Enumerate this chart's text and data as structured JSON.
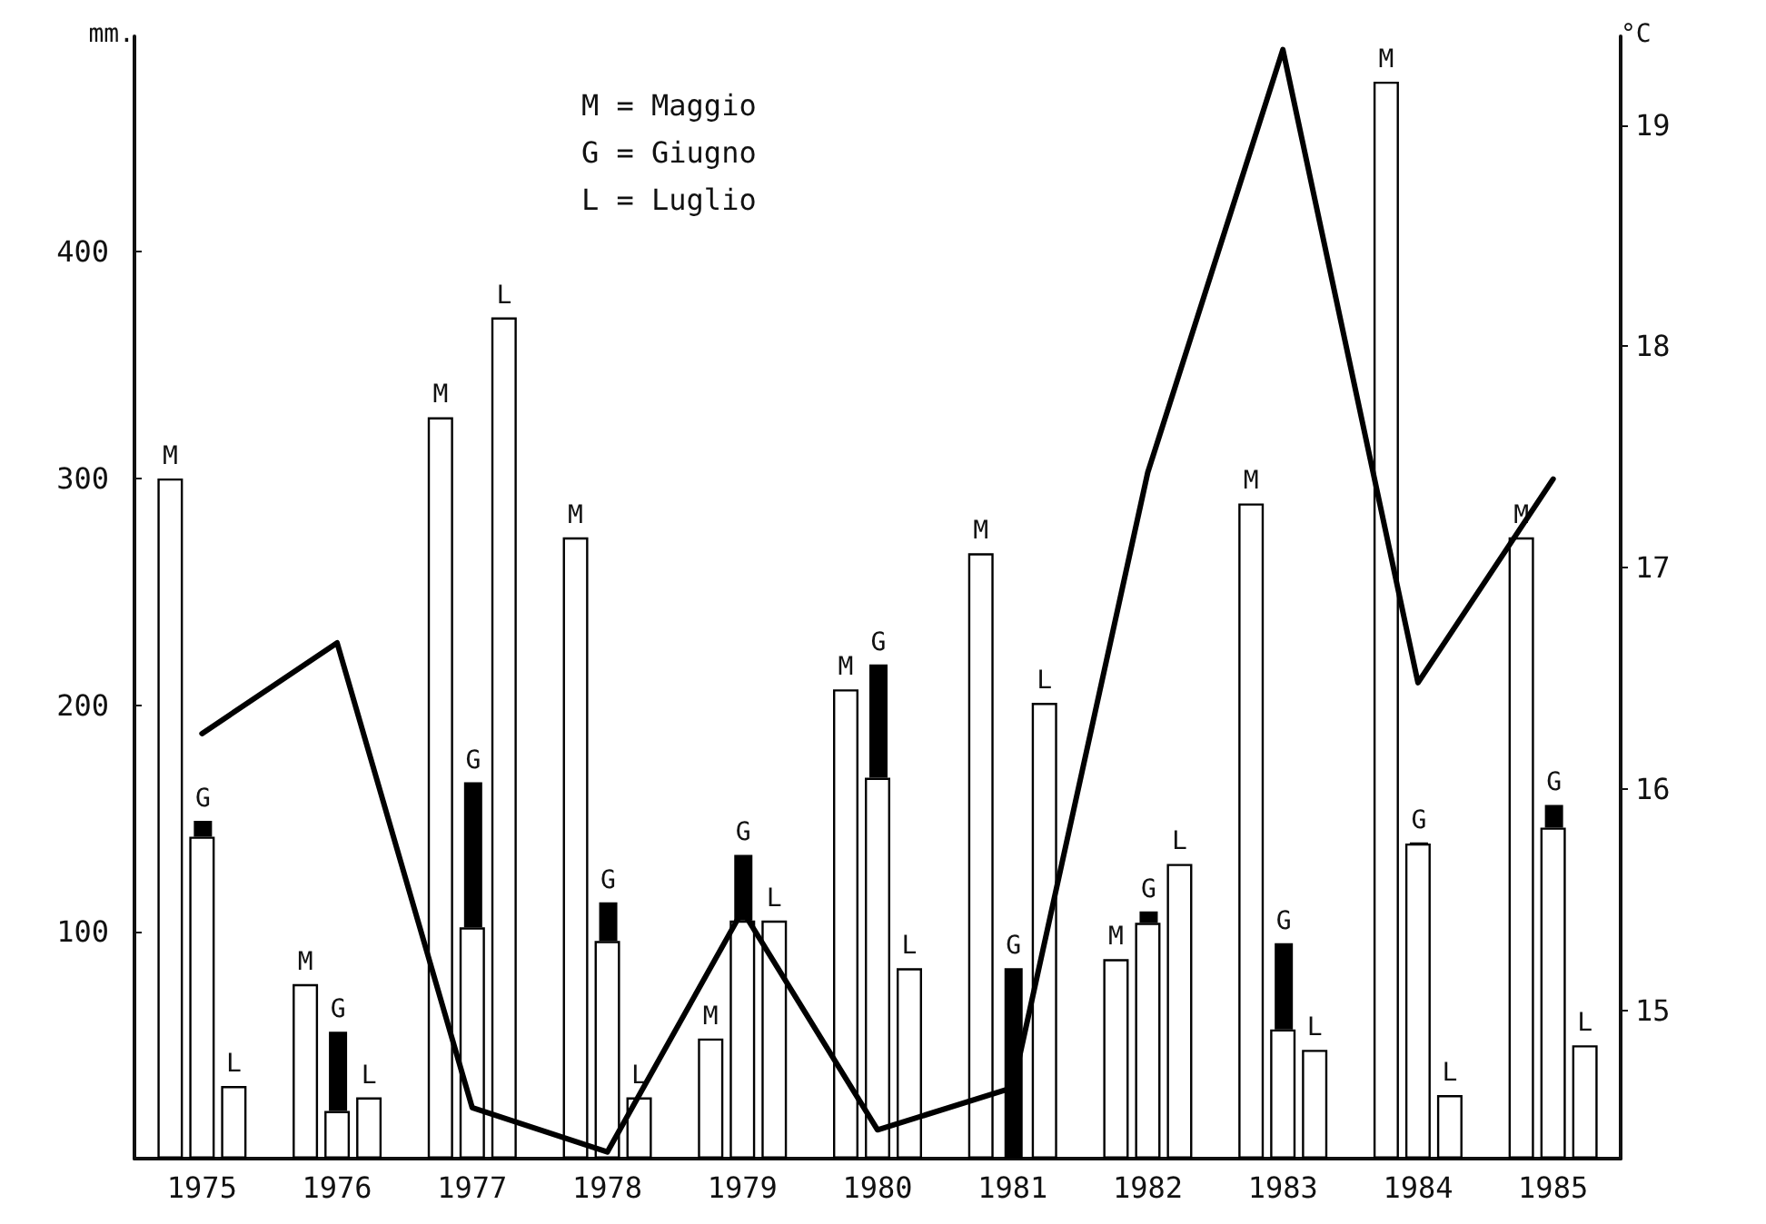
{
  "chart_data": {
    "type": "bar",
    "ylabel": "mm.",
    "y2label": "°C",
    "categories": [
      "1975",
      "1976",
      "1977",
      "1978",
      "1979",
      "1980",
      "1981",
      "1982",
      "1983",
      "1984",
      "1985"
    ],
    "series": [
      {
        "name": "M",
        "color": "#ffffff",
        "values": [
          300,
          77,
          327,
          274,
          53,
          207,
          267,
          88,
          289,
          475,
          274
        ]
      },
      {
        "name": "G",
        "color": "#ffffff",
        "values": [
          142,
          21,
          102,
          96,
          105,
          168,
          null,
          104,
          57,
          139,
          146
        ]
      },
      {
        "color": "#000000",
        "base": [
          142,
          21,
          102,
          96,
          105,
          168,
          0,
          104,
          57,
          139,
          146
        ],
        "values": [
          7,
          35,
          64,
          17,
          29,
          50,
          84,
          5,
          38,
          0,
          10
        ]
      },
      {
        "name": "L",
        "color": "#ffffff",
        "values": [
          32,
          27,
          371,
          27,
          105,
          84,
          201,
          130,
          48,
          28,
          50
        ]
      },
      {
        "type": "line",
        "axis": "y2",
        "color": "#000000",
        "values": [
          16.25,
          16.66,
          14.56,
          14.36,
          15.45,
          14.46,
          14.65,
          17.43,
          19.34,
          16.48,
          17.4
        ]
      }
    ],
    "ylim": [
      0,
      495
    ],
    "yticks": [
      100,
      200,
      300,
      400
    ],
    "y2lim": [
      14.33,
      19.4
    ],
    "y2ticks": [
      15,
      16,
      17,
      18,
      19
    ],
    "annotations": [
      "M = Maggio",
      "G = Giugno",
      "L = Luglio"
    ],
    "marker": "none",
    "line_style": "solid",
    "grid": false,
    "legend": false
  }
}
